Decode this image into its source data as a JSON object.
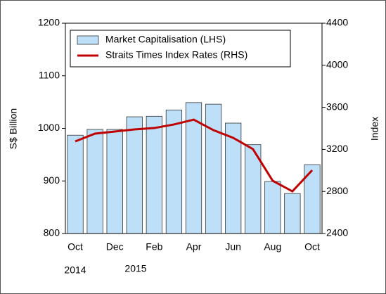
{
  "chart_data": {
    "type": "bar_line",
    "categories": [
      "Oct",
      null,
      "Dec",
      null,
      "Feb",
      null,
      "Apr",
      null,
      "Jun",
      null,
      "Aug",
      null,
      "Oct"
    ],
    "annotations": [
      "2014",
      "2015"
    ],
    "y_label": "S$ Billion",
    "y2_label": "Index",
    "ylim": [
      800,
      1200
    ],
    "yticks": [
      800,
      900,
      1000,
      1100,
      1200
    ],
    "y2lim": [
      2400,
      4400
    ],
    "y2ticks": [
      2400,
      2800,
      3200,
      3600,
      4000,
      4400
    ],
    "legend": "upper left",
    "series": [
      {
        "name": "Market Capitalisation (LHS)",
        "color": "#bde0f8",
        "kind": "bar",
        "values": [
          987,
          998,
          998,
          1022,
          1023,
          1035,
          1049,
          1046,
          1010,
          969,
          899,
          876,
          931
        ]
      },
      {
        "name": "Straits Times Index Rates (RHS)",
        "color": "#c00000",
        "kind": "line",
        "axis": "y2",
        "values": [
          3276,
          3350,
          3370,
          3390,
          3403,
          3437,
          3483,
          3383,
          3310,
          3203,
          2902,
          2801,
          3002
        ]
      }
    ]
  }
}
